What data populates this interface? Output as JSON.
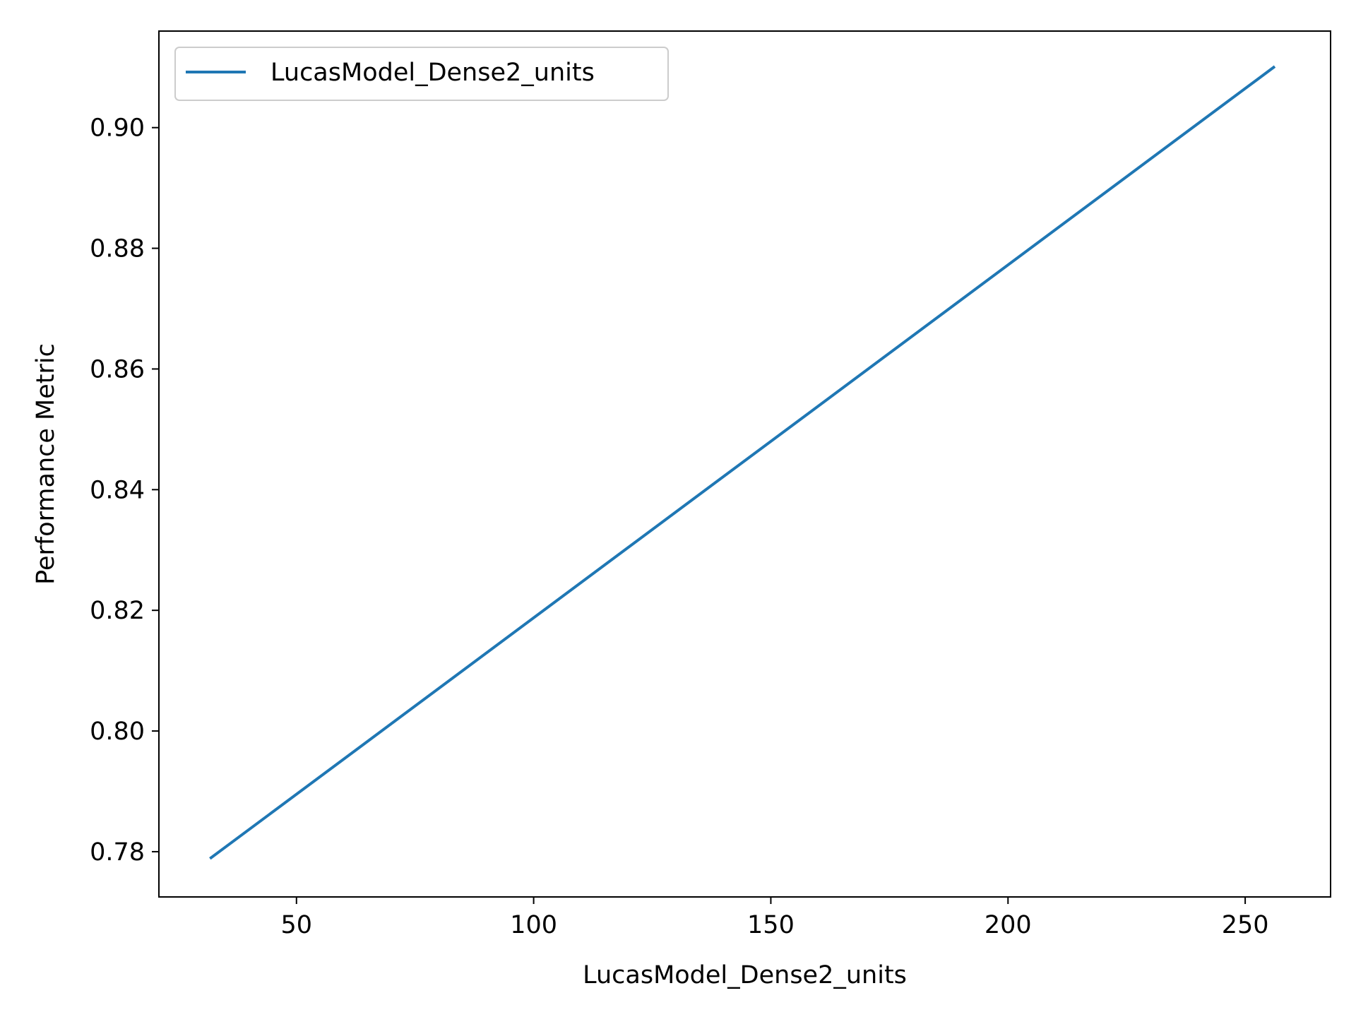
{
  "chart_data": {
    "type": "line",
    "title": "",
    "xlabel": "LucasModel_Dense2_units",
    "ylabel": "Performance Metric",
    "xlim": [
      21,
      268
    ],
    "ylim": [
      0.7725,
      0.916
    ],
    "xticks": [
      50,
      100,
      150,
      200,
      250
    ],
    "xtick_labels": [
      "50",
      "100",
      "150",
      "200",
      "250"
    ],
    "yticks": [
      0.78,
      0.8,
      0.82,
      0.84,
      0.86,
      0.88,
      0.9
    ],
    "ytick_labels": [
      "0.78",
      "0.80",
      "0.82",
      "0.84",
      "0.86",
      "0.88",
      "0.90"
    ],
    "grid": false,
    "legend_position": "upper-left",
    "series": [
      {
        "name": "LucasModel_Dense2_units",
        "color": "#1f77b4",
        "x": [
          32,
          256
        ],
        "y": [
          0.779,
          0.91
        ]
      }
    ]
  }
}
